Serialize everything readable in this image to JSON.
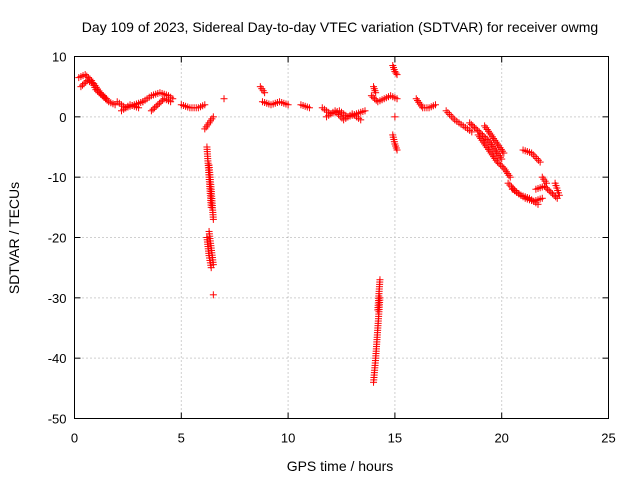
{
  "chart_data": {
    "type": "scatter",
    "title": "Day 109 of 2023, Sidereal Day-to-day VTEC variation (SDTVAR) for receiver owmg",
    "xlabel": "GPS time / hours",
    "ylabel": "SDTVAR / TECUs",
    "xlim": [
      0,
      25
    ],
    "ylim": [
      -50,
      10
    ],
    "xticks": [
      0,
      5,
      10,
      15,
      20,
      25
    ],
    "yticks": [
      -50,
      -40,
      -30,
      -20,
      -10,
      0,
      10
    ],
    "xtick_labels": [
      "0",
      "5",
      "10",
      "15",
      "20",
      "25"
    ],
    "ytick_labels": [
      "-50",
      "-40",
      "-30",
      "-20",
      "-10",
      "0",
      "10"
    ],
    "grid": true,
    "marker": "plus",
    "marker_color": "#ff0000",
    "segments": [
      {
        "x": [
          0.2,
          0.5,
          0.8,
          1.0,
          1.3,
          1.6,
          1.9
        ],
        "y": [
          6.5,
          7.0,
          6.0,
          4.5,
          3.5,
          2.5,
          2.0
        ]
      },
      {
        "x": [
          0.3,
          0.6,
          0.9,
          1.2,
          1.5
        ],
        "y": [
          5.0,
          6.0,
          5.5,
          4.0,
          3.0
        ]
      },
      {
        "x": [
          2.0,
          2.4,
          2.8,
          3.2
        ],
        "y": [
          2.5,
          1.5,
          2.0,
          2.5
        ]
      },
      {
        "x": [
          2.2,
          2.6,
          3.0
        ],
        "y": [
          1.0,
          2.0,
          1.5
        ]
      },
      {
        "x": [
          3.2,
          3.6,
          4.0,
          4.4,
          4.6
        ],
        "y": [
          2.5,
          3.5,
          4.0,
          3.5,
          3.0
        ]
      },
      {
        "x": [
          3.6,
          3.9,
          4.2,
          4.5
        ],
        "y": [
          1.0,
          2.0,
          3.0,
          2.5
        ]
      },
      {
        "x": [
          5.0,
          5.4,
          5.8,
          6.1
        ],
        "y": [
          2.0,
          1.5,
          1.5,
          2.0
        ]
      },
      {
        "x": [
          6.1,
          6.3,
          6.5
        ],
        "y": [
          -2.0,
          -1.0,
          0.0
        ]
      },
      {
        "x": [
          6.2,
          6.3,
          6.4
        ],
        "y": [
          -5.0,
          -10.0,
          -15.0
        ]
      },
      {
        "x": [
          6.3,
          6.4,
          6.5
        ],
        "y": [
          -8.0,
          -12.0,
          -17.0
        ]
      },
      {
        "x": [
          6.2,
          6.3,
          6.4
        ],
        "y": [
          -20.0,
          -23.0,
          -25.0
        ]
      },
      {
        "x": [
          6.3,
          6.5
        ],
        "y": [
          -19.0,
          -24.5
        ]
      },
      {
        "x": [
          6.5
        ],
        "y": [
          -29.5
        ]
      },
      {
        "x": [
          7.0
        ],
        "y": [
          3.0
        ]
      },
      {
        "x": [
          8.7,
          8.9
        ],
        "y": [
          5.0,
          4.0
        ]
      },
      {
        "x": [
          8.8,
          9.2,
          9.6,
          10.0
        ],
        "y": [
          2.5,
          2.0,
          2.5,
          2.0
        ]
      },
      {
        "x": [
          10.6,
          11.0
        ],
        "y": [
          2.0,
          1.5
        ]
      },
      {
        "x": [
          11.6,
          12.0,
          12.4,
          12.8,
          13.2,
          13.6
        ],
        "y": [
          1.5,
          0.5,
          1.0,
          0.0,
          0.5,
          1.0
        ]
      },
      {
        "x": [
          11.8,
          12.2,
          12.6,
          13.0,
          13.4
        ],
        "y": [
          0.0,
          1.0,
          -0.5,
          0.5,
          -0.5
        ]
      },
      {
        "x": [
          13.9,
          14.2,
          14.5,
          14.8,
          15.1
        ],
        "y": [
          3.5,
          2.5,
          3.0,
          3.5,
          3.0
        ]
      },
      {
        "x": [
          14.0,
          14.1
        ],
        "y": [
          5.0,
          4.0
        ]
      },
      {
        "x": [
          14.0,
          14.1,
          14.2,
          14.3
        ],
        "y": [
          -44.0,
          -40.0,
          -35.0,
          -30.0
        ]
      },
      {
        "x": [
          14.2,
          14.3
        ],
        "y": [
          -32.0,
          -27.0
        ]
      },
      {
        "x": [
          14.9,
          15.0,
          15.1
        ],
        "y": [
          8.5,
          7.5,
          7.0
        ]
      },
      {
        "x": [
          14.9,
          15.0,
          15.1
        ],
        "y": [
          -3.0,
          -4.5,
          -5.5
        ]
      },
      {
        "x": [
          15.0
        ],
        "y": [
          0.0
        ]
      },
      {
        "x": [
          16.0,
          16.3,
          16.6,
          16.9
        ],
        "y": [
          3.0,
          1.5,
          1.5,
          2.0
        ]
      },
      {
        "x": [
          17.4,
          17.8,
          18.2,
          18.6
        ],
        "y": [
          1.0,
          -0.5,
          -1.5,
          -2.5
        ]
      },
      {
        "x": [
          18.5,
          18.8,
          19.1,
          19.4,
          19.7,
          20.0
        ],
        "y": [
          -1.0,
          -2.0,
          -3.0,
          -4.0,
          -5.5,
          -7.0
        ]
      },
      {
        "x": [
          18.9,
          19.2,
          19.5,
          19.8,
          20.1,
          20.4
        ],
        "y": [
          -3.0,
          -4.5,
          -6.0,
          -7.5,
          -8.5,
          -10.0
        ]
      },
      {
        "x": [
          19.2,
          19.5,
          19.8,
          20.1
        ],
        "y": [
          -1.5,
          -3.0,
          -4.5,
          -6.0
        ]
      },
      {
        "x": [
          20.3,
          20.7,
          21.1,
          21.5,
          21.9
        ],
        "y": [
          -11.0,
          -12.5,
          -13.5,
          -14.0,
          -13.5
        ]
      },
      {
        "x": [
          20.5,
          20.9,
          21.3,
          21.7
        ],
        "y": [
          -12.0,
          -13.0,
          -13.5,
          -14.5
        ]
      },
      {
        "x": [
          21.6,
          22.0,
          22.3,
          22.6
        ],
        "y": [
          -12.0,
          -11.5,
          -12.5,
          -13.5
        ]
      },
      {
        "x": [
          22.5,
          22.7
        ],
        "y": [
          -11.0,
          -13.0
        ]
      },
      {
        "x": [
          21.0,
          21.4,
          21.8
        ],
        "y": [
          -5.5,
          -6.0,
          -7.5
        ]
      },
      {
        "x": [
          21.9,
          22.1
        ],
        "y": [
          -10.0,
          -11.0
        ]
      }
    ]
  }
}
